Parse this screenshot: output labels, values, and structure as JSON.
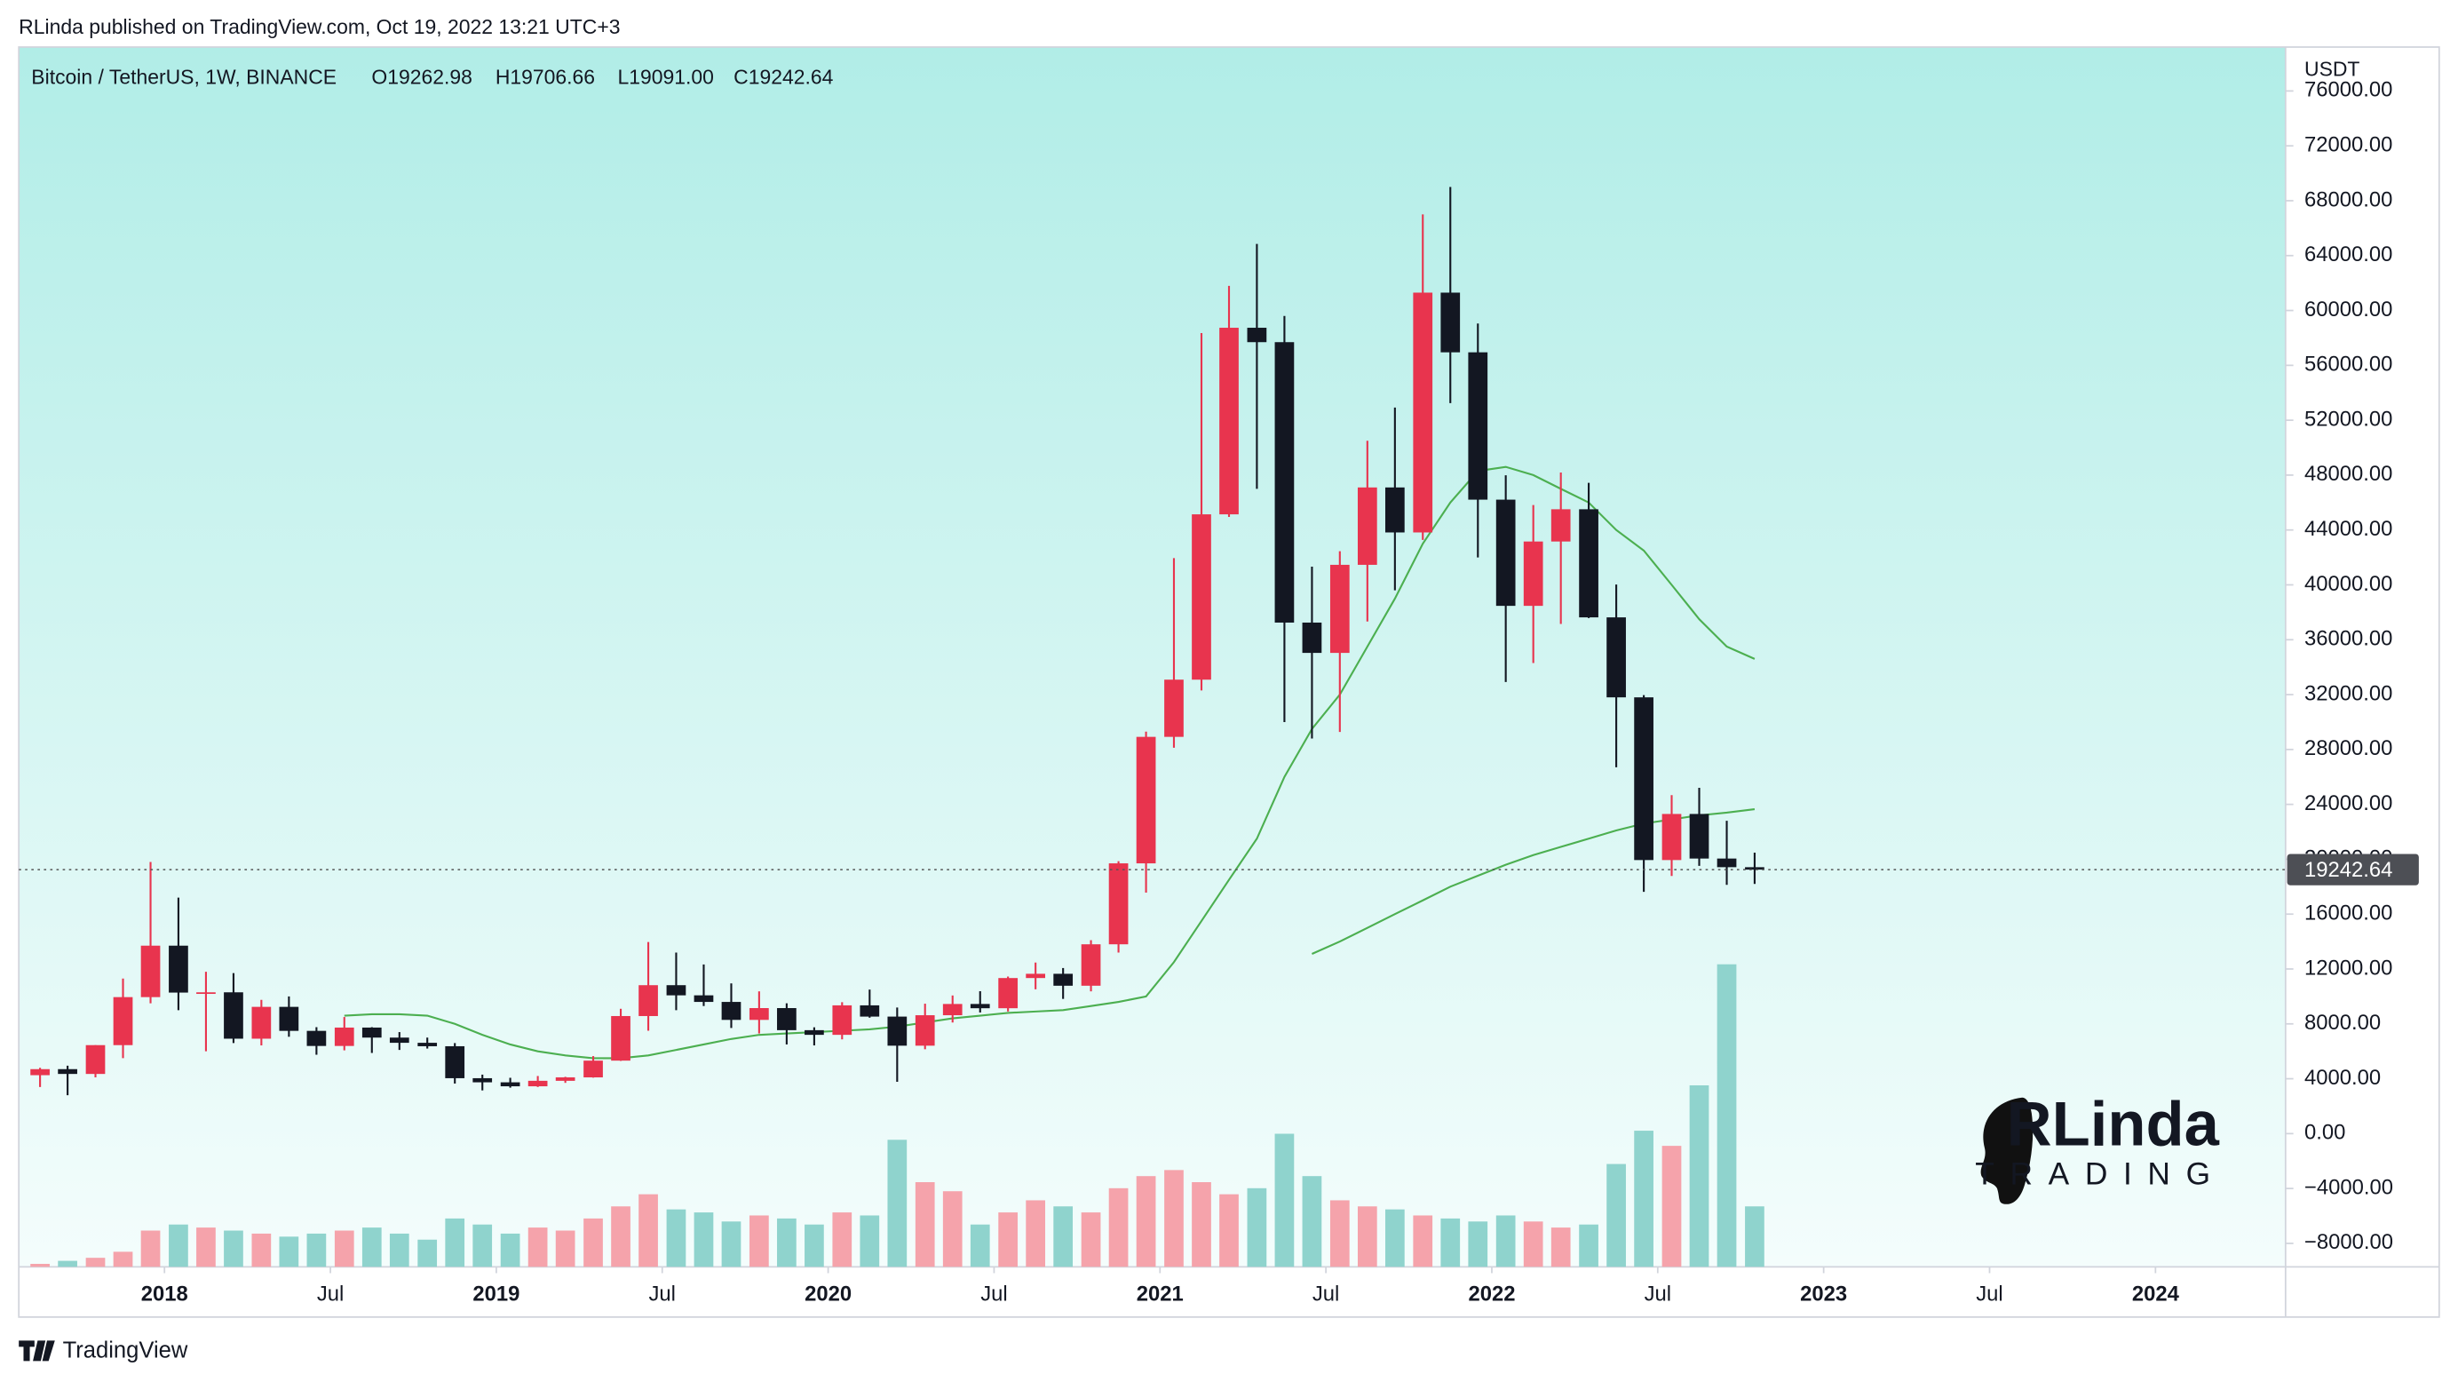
{
  "header": {
    "published": "RLinda published on TradingView.com, Oct 19, 2022 13:21 UTC+3",
    "symbol": "Bitcoin / TetherUS, 1W, BINANCE",
    "ohlc": [
      "O19262.98",
      "H19706.66",
      "L19091.00",
      "C19242.64"
    ],
    "currency": "USDT",
    "watermark": "RLinda",
    "watermark_sub": "TRADING",
    "footer": "TradingView"
  },
  "chart_data": {
    "type": "candlestick",
    "x": [
      2017.625,
      2017.708,
      2017.792,
      2017.875,
      2017.958,
      2018.042,
      2018.125,
      2018.208,
      2018.292,
      2018.375,
      2018.458,
      2018.542,
      2018.625,
      2018.708,
      2018.792,
      2018.875,
      2018.958,
      2019.042,
      2019.125,
      2019.208,
      2019.292,
      2019.375,
      2019.458,
      2019.542,
      2019.625,
      2019.708,
      2019.792,
      2019.875,
      2019.958,
      2020.042,
      2020.125,
      2020.208,
      2020.292,
      2020.375,
      2020.458,
      2020.542,
      2020.625,
      2020.708,
      2020.792,
      2020.875,
      2020.958,
      2021.042,
      2021.125,
      2021.208,
      2021.292,
      2021.375,
      2021.458,
      2021.542,
      2021.625,
      2021.708,
      2021.792,
      2021.875,
      2021.958,
      2022.042,
      2022.125,
      2022.208,
      2022.292,
      2022.375,
      2022.458,
      2022.542,
      2022.625,
      2022.708,
      2022.792
    ],
    "open": [
      4260,
      4700,
      4350,
      6450,
      9950,
      13700,
      10280,
      10300,
      6920,
      9240,
      7490,
      6390,
      7730,
      7000,
      6620,
      6370,
      4040,
      3740,
      3450,
      3850,
      4100,
      5320,
      8570,
      10820,
      10080,
      9600,
      8290,
      9150,
      7540,
      7200,
      9350,
      8530,
      6410,
      8630,
      9450,
      9140,
      11340,
      11650,
      10780,
      13800,
      19700,
      28920,
      33090,
      45140,
      58740,
      57690,
      37250,
      35040,
      41460,
      47100,
      43820,
      61300,
      56950,
      46210,
      38470,
      43160,
      45510,
      37630,
      31800,
      19940,
      23300,
      20050,
      19420
    ],
    "high": [
      4800,
      4950,
      6450,
      11300,
      19800,
      17200,
      11800,
      11700,
      9750,
      10000,
      7760,
      8500,
      7760,
      7400,
      7000,
      6600,
      4300,
      4070,
      4200,
      4140,
      5650,
      9100,
      13970,
      13200,
      12330,
      10950,
      10370,
      9500,
      7750,
      9580,
      10500,
      9190,
      9470,
      10070,
      10380,
      11450,
      12470,
      12070,
      14100,
      19860,
      29300,
      41950,
      58350,
      61790,
      64850,
      59600,
      41330,
      42450,
      50500,
      52920,
      67000,
      69000,
      59050,
      47990,
      45820,
      48190,
      47440,
      40020,
      31960,
      24670,
      25210,
      22800,
      20480
    ],
    "low": [
      3400,
      2800,
      4100,
      5500,
      9500,
      9000,
      6000,
      6600,
      6430,
      7060,
      5750,
      6070,
      5880,
      6100,
      6200,
      3650,
      3150,
      3350,
      3400,
      3700,
      4080,
      5300,
      7500,
      9000,
      9300,
      7700,
      7300,
      6500,
      6430,
      6870,
      8450,
      3780,
      6150,
      8100,
      8830,
      8900,
      10520,
      9820,
      10370,
      13200,
      17570,
      28130,
      32300,
      44950,
      47000,
      30000,
      28800,
      29280,
      37330,
      39600,
      43280,
      53250,
      42000,
      32920,
      34300,
      37150,
      37580,
      26700,
      17620,
      18780,
      19520,
      18130,
      18200
    ],
    "close": [
      4700,
      4350,
      6450,
      9950,
      13700,
      10280,
      10300,
      6920,
      9240,
      7490,
      6390,
      7730,
      7000,
      6620,
      6370,
      4040,
      3740,
      3450,
      3850,
      4100,
      5320,
      8570,
      10820,
      10080,
      9600,
      8290,
      9150,
      7540,
      7200,
      9350,
      8530,
      6410,
      8630,
      9450,
      9140,
      11340,
      11650,
      10780,
      13800,
      19700,
      28920,
      33090,
      45140,
      58740,
      57690,
      37250,
      35040,
      41460,
      47100,
      43820,
      61300,
      56950,
      46210,
      38470,
      43160,
      45510,
      37630,
      31800,
      19940,
      23300,
      20050,
      19420,
      19242.64
    ],
    "volume": [
      1,
      2,
      3,
      5,
      12,
      14,
      13,
      12,
      11,
      10,
      11,
      12,
      13,
      11,
      9,
      16,
      14,
      11,
      13,
      12,
      16,
      20,
      24,
      19,
      18,
      15,
      17,
      16,
      14,
      18,
      17,
      42,
      28,
      25,
      14,
      18,
      22,
      20,
      18,
      26,
      30,
      32,
      28,
      24,
      26,
      44,
      30,
      22,
      20,
      19,
      17,
      16,
      15,
      17,
      15,
      13,
      14,
      34,
      45,
      40,
      60,
      100,
      20
    ],
    "up_color": "#e8344e",
    "down_color": "#131722",
    "volume_up_color": "#f5a3ab",
    "volume_down_color": "#8fd3cd",
    "series": [
      {
        "color": "#4caf50",
        "values": [
          null,
          null,
          null,
          null,
          null,
          null,
          null,
          null,
          null,
          null,
          null,
          8600,
          8700,
          8700,
          8600,
          8000,
          7200,
          6500,
          6000,
          5700,
          5500,
          5500,
          5700,
          6100,
          6500,
          6900,
          7200,
          7300,
          7400,
          7500,
          7600,
          7800,
          8100,
          8400,
          8600,
          8800,
          8900,
          9000,
          9300,
          9600,
          10000,
          12500,
          15500,
          18500,
          21500,
          26000,
          29500,
          32000,
          35500,
          39000,
          43000,
          46000,
          48300,
          48600,
          48000,
          47000,
          46000,
          44000,
          42500,
          40000,
          37500,
          35500,
          34600
        ]
      },
      {
        "color": "#4caf50",
        "values": [
          null,
          null,
          null,
          null,
          null,
          null,
          null,
          null,
          null,
          null,
          null,
          null,
          null,
          null,
          null,
          null,
          null,
          null,
          null,
          null,
          null,
          null,
          null,
          null,
          null,
          null,
          null,
          null,
          null,
          null,
          null,
          null,
          null,
          null,
          null,
          null,
          null,
          null,
          null,
          null,
          null,
          null,
          null,
          null,
          null,
          null,
          13100,
          14000,
          15000,
          16000,
          17000,
          18000,
          18800,
          19600,
          20300,
          20900,
          21500,
          22100,
          22600,
          22900,
          23200,
          23400,
          23650
        ]
      }
    ],
    "last_price": 19242.64,
    "xlim": [
      2017.561,
      2024.392
    ],
    "xticks": [
      2018,
      {
        "value": 2018.5,
        "label": "Jul"
      },
      2019,
      {
        "value": 2019.5,
        "label": "Jul"
      },
      2020,
      {
        "value": 2020.5,
        "label": "Jul"
      },
      2021,
      {
        "value": 2021.5,
        "label": "Jul"
      },
      2022,
      {
        "value": 2022.5,
        "label": "Jul"
      },
      2023,
      {
        "value": 2023.5,
        "label": "Jul"
      },
      2024
    ],
    "ylim": [
      -9714,
      79200
    ],
    "yticks": [
      {
        "value": -8000,
        "label": "−8000.00"
      },
      {
        "value": -4000,
        "label": "−4000.00"
      },
      {
        "value": 0,
        "label": "0.00"
      },
      {
        "value": 4000,
        "label": "4000.00"
      },
      {
        "value": 8000,
        "label": "8000.00"
      },
      {
        "value": 12000,
        "label": "12000.00"
      },
      {
        "value": 16000,
        "label": "16000.00"
      },
      {
        "value": 20000,
        "label": "20000.00"
      },
      {
        "value": 24000,
        "label": "24000.00"
      },
      {
        "value": 28000,
        "label": "28000.00"
      },
      {
        "value": 32000,
        "label": "32000.00"
      },
      {
        "value": 36000,
        "label": "36000.00"
      },
      {
        "value": 40000,
        "label": "40000.00"
      },
      {
        "value": 44000,
        "label": "44000.00"
      },
      {
        "value": 48000,
        "label": "48000.00"
      },
      {
        "value": 52000,
        "label": "52000.00"
      },
      {
        "value": 56000,
        "label": "56000.00"
      },
      {
        "value": 60000,
        "label": "60000.00"
      },
      {
        "value": 64000,
        "label": "64000.00"
      },
      {
        "value": 68000,
        "label": "68000.00"
      },
      {
        "value": 72000,
        "label": "72000.00"
      },
      {
        "value": 76000,
        "label": "76000.00"
      }
    ]
  }
}
